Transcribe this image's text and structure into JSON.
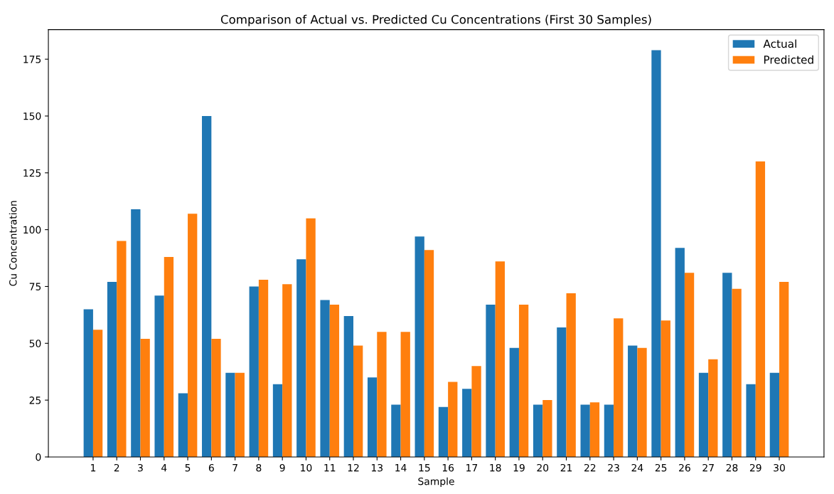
{
  "chart_data": {
    "type": "bar",
    "title": "Comparison of Actual vs. Predicted Cu Concentrations (First 30 Samples)",
    "xlabel": "Sample",
    "ylabel": "Cu Concentration",
    "categories": [
      "1",
      "2",
      "3",
      "4",
      "5",
      "6",
      "7",
      "8",
      "9",
      "10",
      "11",
      "12",
      "13",
      "14",
      "15",
      "16",
      "17",
      "18",
      "19",
      "20",
      "21",
      "22",
      "23",
      "24",
      "25",
      "26",
      "27",
      "28",
      "29",
      "30"
    ],
    "series": [
      {
        "name": "Actual",
        "color": "#1f77b4",
        "values": [
          65,
          77,
          109,
          71,
          28,
          150,
          37,
          75,
          32,
          87,
          69,
          62,
          35,
          23,
          97,
          22,
          30,
          67,
          48,
          23,
          57,
          23,
          23,
          49,
          179,
          92,
          37,
          81,
          32,
          37
        ]
      },
      {
        "name": "Predicted",
        "color": "#ff7f0e",
        "values": [
          56,
          95,
          52,
          88,
          107,
          52,
          37,
          78,
          76,
          105,
          67,
          49,
          55,
          55,
          91,
          33,
          40,
          86,
          67,
          25,
          72,
          24,
          61,
          48,
          60,
          81,
          43,
          74,
          130,
          77
        ]
      }
    ],
    "ylim": [
      0,
      188
    ],
    "yticks": [
      0,
      25,
      50,
      75,
      100,
      125,
      150,
      175
    ],
    "legend": "top right"
  }
}
